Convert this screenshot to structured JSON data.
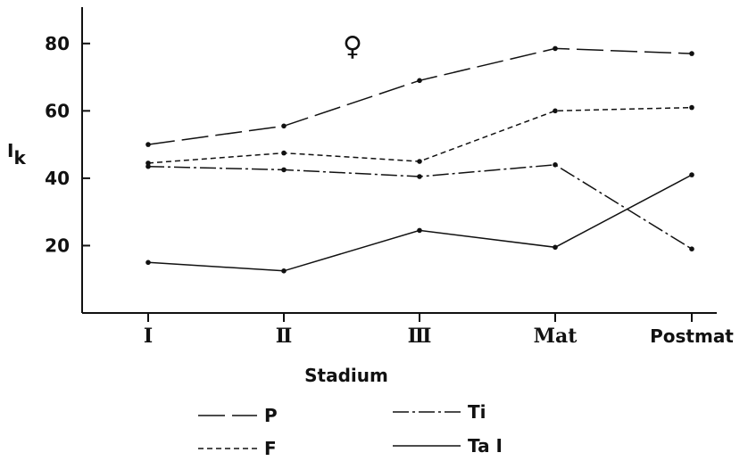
{
  "chart_data": {
    "type": "line",
    "title": "",
    "annotation": "♀",
    "xlabel": "Stadium",
    "ylabel": "I",
    "ylabel_subscript": "k",
    "categories": [
      "I",
      "II",
      "III",
      "Mat",
      "Postmat"
    ],
    "category_display": [
      "I",
      "Ⅱ",
      "Ⅲ",
      "Mat",
      "Postmat"
    ],
    "yticks": [
      20,
      40,
      60,
      80
    ],
    "ylim": [
      0,
      90
    ],
    "grid": false,
    "legend_position": "bottom",
    "series": [
      {
        "name": "P",
        "dash": "long-dash",
        "values": [
          50,
          55.5,
          69,
          78.5,
          77
        ]
      },
      {
        "name": "F",
        "dash": "short-dash",
        "values": [
          44.5,
          47.5,
          45,
          60,
          61
        ]
      },
      {
        "name": "Ti",
        "dash": "dash-dot",
        "values": [
          43.5,
          42.5,
          40.5,
          44,
          19
        ]
      },
      {
        "name": "Ta I",
        "dash": "solid",
        "values": [
          15,
          12.5,
          24.5,
          19.5,
          41
        ]
      }
    ]
  }
}
